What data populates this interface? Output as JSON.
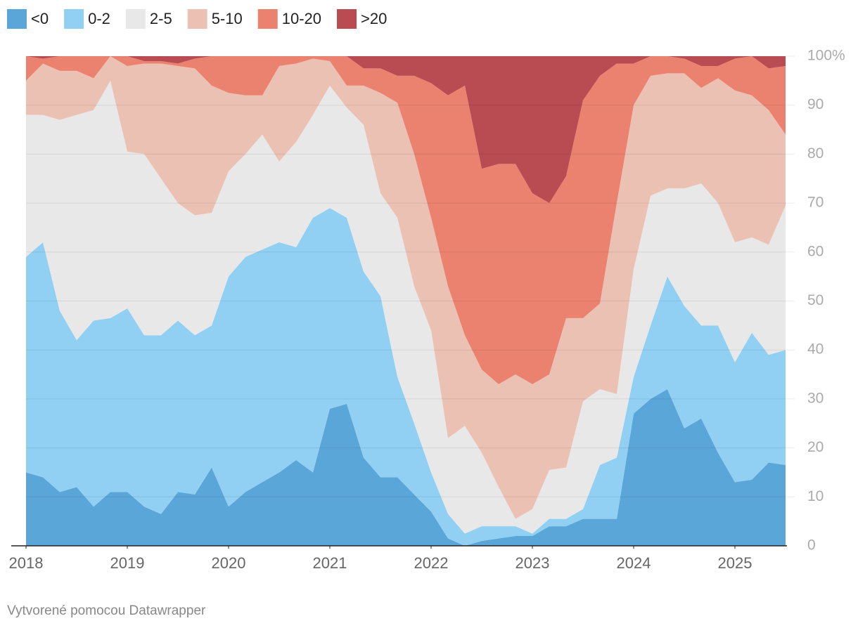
{
  "chart_data": {
    "type": "stacked_area",
    "x": [
      2018,
      2018.167,
      2018.333,
      2018.5,
      2018.667,
      2018.833,
      2019,
      2019.167,
      2019.333,
      2019.5,
      2019.667,
      2019.833,
      2020,
      2020.167,
      2020.333,
      2020.5,
      2020.667,
      2020.833,
      2021,
      2021.167,
      2021.333,
      2021.5,
      2021.667,
      2021.833,
      2022,
      2022.167,
      2022.333,
      2022.5,
      2022.667,
      2022.833,
      2023,
      2023.167,
      2023.333,
      2023.5,
      2023.667,
      2023.833,
      2024,
      2024.167,
      2024.333,
      2024.5,
      2024.667,
      2024.833,
      2025,
      2025.167,
      2025.333,
      2025.5
    ],
    "series": [
      {
        "name": "<0",
        "color": "#5ba6d8",
        "values": [
          15,
          14,
          11,
          12,
          8,
          11,
          11,
          8,
          6.5,
          11,
          10.5,
          16,
          8,
          11,
          13,
          15,
          17.5,
          15,
          28,
          29,
          18,
          14,
          14,
          10.5,
          7,
          1.5,
          0,
          1,
          1.5,
          2,
          2,
          4,
          4,
          5.5,
          5.5,
          5.5,
          27,
          30,
          32,
          24,
          26,
          19,
          13,
          13.5,
          17,
          16.5
        ]
      },
      {
        "name": "0-2",
        "color": "#91cff3",
        "values": [
          44,
          48,
          37,
          30,
          38,
          35.5,
          37.5,
          35,
          36.5,
          35,
          32.5,
          29,
          47,
          48,
          47.5,
          47,
          43.5,
          52,
          41,
          38,
          38,
          37,
          20.5,
          14.5,
          8,
          5,
          2.5,
          3,
          2.5,
          2,
          0.5,
          1.5,
          1.5,
          2,
          11,
          12.5,
          7.5,
          15,
          23,
          25,
          19,
          26,
          24.5,
          30,
          22,
          23.5
        ]
      },
      {
        "name": "2-5",
        "color": "#e8e8e8",
        "values": [
          29,
          26,
          39,
          46,
          43,
          48.5,
          32,
          37,
          32,
          24,
          24.5,
          23,
          21.5,
          21,
          23.5,
          16.5,
          21.5,
          21,
          25,
          22.5,
          30,
          21,
          32.5,
          28,
          29,
          15.5,
          22,
          15,
          8,
          1.5,
          5,
          10,
          10.5,
          22,
          15.5,
          13,
          22,
          26.5,
          18,
          24,
          29,
          25,
          24.5,
          19.5,
          22.5,
          29.5
        ]
      },
      {
        "name": "5-10",
        "color": "#ebc1b3",
        "values": [
          7,
          10.5,
          10,
          9,
          6.5,
          5,
          17.5,
          18.5,
          23.5,
          28,
          30,
          26,
          16,
          12,
          8,
          19.5,
          16,
          11.5,
          5,
          4.5,
          8,
          20.5,
          23.5,
          27,
          23,
          31,
          18.5,
          17,
          21,
          29.5,
          25.5,
          19.5,
          30.5,
          17,
          17.5,
          39,
          33.5,
          24.5,
          23.5,
          23.5,
          19.5,
          25.5,
          31,
          29,
          27.5,
          14.5
        ]
      },
      {
        "name": "10-20",
        "color": "#eb8270",
        "values": [
          5,
          1,
          3,
          3,
          4.5,
          0,
          2,
          0.5,
          0.5,
          0.5,
          2,
          6,
          7.5,
          8,
          8,
          2,
          1.5,
          0.5,
          1,
          6,
          3.5,
          5,
          5.5,
          16,
          27.5,
          39,
          51,
          41,
          45,
          43,
          39,
          35,
          29,
          44.5,
          46.5,
          28.5,
          8.5,
          4,
          3.5,
          3,
          4.5,
          2.5,
          6.5,
          8,
          8.5,
          14
        ]
      },
      {
        "name": ">20",
        "color": "#b94b52",
        "values": [
          0,
          0.5,
          0,
          0,
          0,
          0,
          0,
          1,
          1,
          1.5,
          0.5,
          0,
          0,
          0,
          0,
          0,
          0,
          0,
          0,
          0,
          2.5,
          2.5,
          4,
          4,
          5.5,
          8,
          6,
          23,
          22,
          22,
          28,
          30,
          24.5,
          9,
          4,
          1.5,
          1.5,
          0,
          0,
          0.5,
          2,
          2,
          0.5,
          0,
          2.5,
          2
        ]
      }
    ],
    "xlim": [
      2018,
      2025.5
    ],
    "xticks": [
      2018,
      2019,
      2020,
      2021,
      2022,
      2023,
      2024,
      2025
    ],
    "ylim": [
      0,
      100
    ],
    "yticks": [
      0,
      10,
      20,
      30,
      40,
      50,
      60,
      70,
      80,
      90,
      {
        "value": 100,
        "label": "100%"
      }
    ],
    "grid": true,
    "legend": "top-left",
    "footer": "Vytvorené pomocou Datawrapper"
  }
}
